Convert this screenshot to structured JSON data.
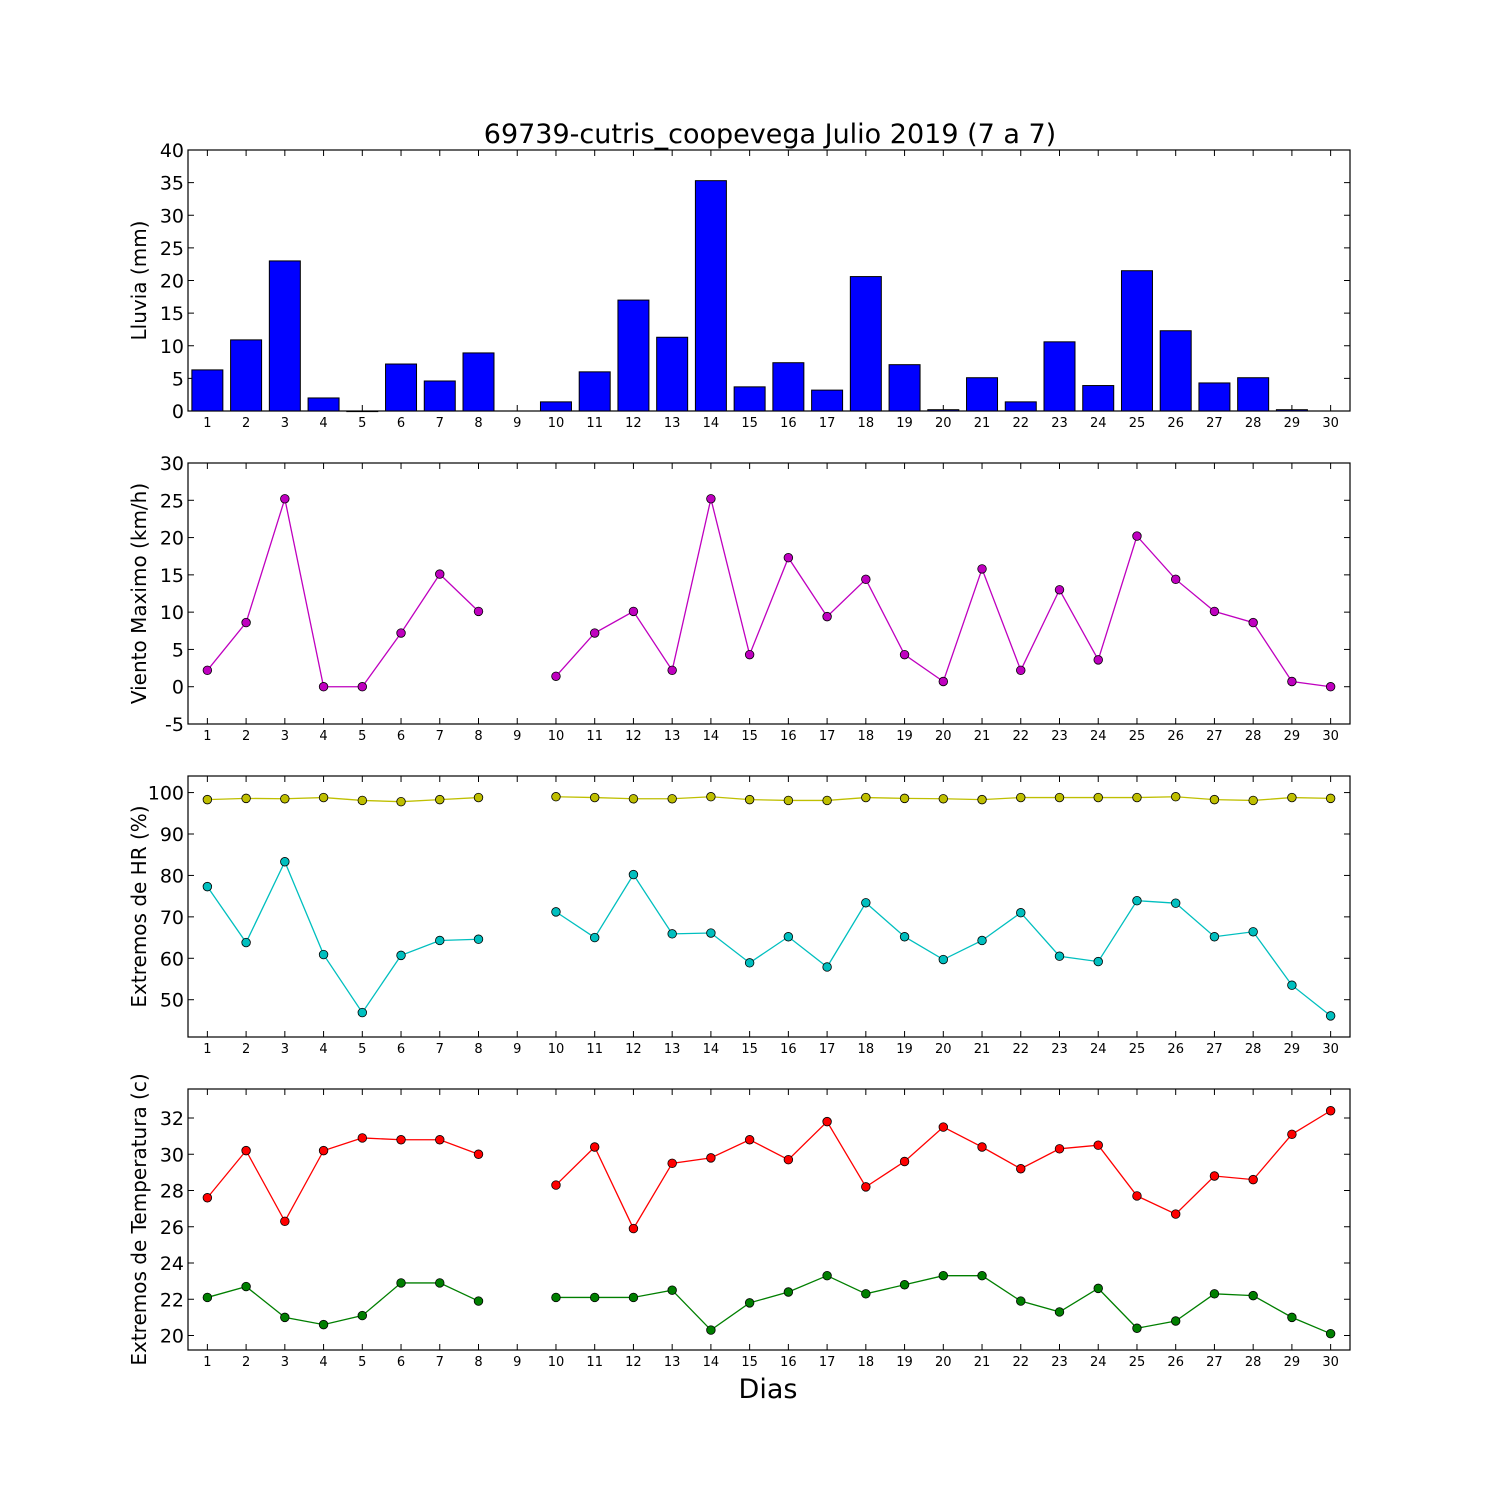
{
  "title": "69739-cutris_coopevega Julio 2019  (7 a 7)",
  "xlabel": "Dias",
  "chart_data": [
    {
      "type": "bar",
      "ylabel": "Lluvia (mm)",
      "ylim": [
        0,
        40
      ],
      "yticks": [
        0,
        5,
        10,
        15,
        20,
        25,
        30,
        35,
        40
      ],
      "x": [
        1,
        2,
        3,
        4,
        5,
        6,
        7,
        8,
        9,
        10,
        11,
        12,
        13,
        14,
        15,
        16,
        17,
        18,
        19,
        20,
        21,
        22,
        23,
        24,
        25,
        26,
        27,
        28,
        29,
        30
      ],
      "series": [
        {
          "color": "#0000ff",
          "values": [
            6.3,
            10.9,
            23.0,
            2.0,
            0.0,
            7.2,
            4.6,
            8.9,
            null,
            1.4,
            6.0,
            17.0,
            11.3,
            35.3,
            3.7,
            7.4,
            3.2,
            20.6,
            7.1,
            0.2,
            5.1,
            1.4,
            10.6,
            3.9,
            21.5,
            12.3,
            4.3,
            5.1,
            0.2,
            null
          ]
        }
      ]
    },
    {
      "type": "line",
      "ylabel": "Viento Maximo (km/h)",
      "ylim": [
        -5,
        30
      ],
      "yticks": [
        -5,
        0,
        5,
        10,
        15,
        20,
        25,
        30
      ],
      "x": [
        1,
        2,
        3,
        4,
        5,
        6,
        7,
        8,
        9,
        10,
        11,
        12,
        13,
        14,
        15,
        16,
        17,
        18,
        19,
        20,
        21,
        22,
        23,
        24,
        25,
        26,
        27,
        28,
        29,
        30
      ],
      "series": [
        {
          "color": "#bf00bf",
          "values": [
            2.2,
            8.6,
            25.2,
            0.0,
            0.0,
            7.2,
            15.1,
            10.1,
            null,
            1.4,
            7.2,
            10.1,
            2.2,
            25.2,
            4.3,
            17.3,
            9.4,
            14.4,
            4.3,
            0.7,
            15.8,
            2.2,
            13.0,
            3.6,
            20.2,
            14.4,
            10.1,
            8.6,
            0.7,
            0.0
          ]
        }
      ]
    },
    {
      "type": "line",
      "ylabel": "Extremos de HR (%)",
      "ylim": [
        41,
        104
      ],
      "yticks": [
        50,
        60,
        70,
        80,
        90,
        100
      ],
      "x": [
        1,
        2,
        3,
        4,
        5,
        6,
        7,
        8,
        9,
        10,
        11,
        12,
        13,
        14,
        15,
        16,
        17,
        18,
        19,
        20,
        21,
        22,
        23,
        24,
        25,
        26,
        27,
        28,
        29,
        30
      ],
      "series": [
        {
          "color": "#bfbf00",
          "values": [
            98.3,
            98.6,
            98.5,
            98.8,
            98.1,
            97.8,
            98.3,
            98.8,
            null,
            99.0,
            98.8,
            98.5,
            98.5,
            99.0,
            98.3,
            98.1,
            98.1,
            98.8,
            98.6,
            98.5,
            98.3,
            98.8,
            98.8,
            98.8,
            98.8,
            99.0,
            98.3,
            98.1,
            98.8,
            98.6
          ]
        },
        {
          "color": "#00bfbf",
          "values": [
            77.3,
            63.8,
            83.3,
            60.9,
            46.9,
            60.7,
            64.3,
            64.6,
            null,
            71.2,
            65.0,
            80.2,
            65.9,
            66.1,
            58.9,
            65.2,
            57.9,
            73.4,
            65.2,
            59.7,
            64.3,
            71.0,
            60.5,
            59.2,
            73.9,
            73.3,
            65.2,
            66.4,
            53.5,
            46.1
          ]
        }
      ]
    },
    {
      "type": "line",
      "ylabel": "Extremos de Temperatura (c)",
      "ylim": [
        19.2,
        33.6
      ],
      "yticks": [
        20,
        22,
        24,
        26,
        28,
        30,
        32
      ],
      "x": [
        1,
        2,
        3,
        4,
        5,
        6,
        7,
        8,
        9,
        10,
        11,
        12,
        13,
        14,
        15,
        16,
        17,
        18,
        19,
        20,
        21,
        22,
        23,
        24,
        25,
        26,
        27,
        28,
        29,
        30
      ],
      "series": [
        {
          "color": "#ff0000",
          "values": [
            27.6,
            30.2,
            26.3,
            30.2,
            30.9,
            30.8,
            30.8,
            30.0,
            null,
            28.3,
            30.4,
            25.9,
            29.5,
            29.8,
            30.8,
            29.7,
            31.8,
            28.2,
            29.6,
            31.5,
            30.4,
            29.2,
            30.3,
            30.5,
            27.7,
            26.7,
            28.8,
            28.6,
            31.1,
            32.4
          ]
        },
        {
          "color": "#007f00",
          "values": [
            22.1,
            22.7,
            21.0,
            20.6,
            21.1,
            22.9,
            22.9,
            21.9,
            null,
            22.1,
            22.1,
            22.1,
            22.5,
            20.3,
            21.8,
            22.4,
            23.3,
            22.3,
            22.8,
            23.3,
            23.3,
            21.9,
            21.3,
            22.6,
            20.4,
            20.8,
            22.3,
            22.2,
            21.0,
            20.1
          ]
        }
      ]
    }
  ]
}
